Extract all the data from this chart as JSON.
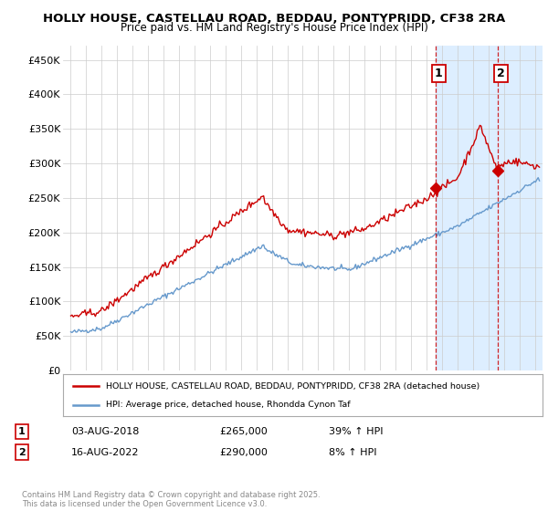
{
  "title_line1": "HOLLY HOUSE, CASTELLAU ROAD, BEDDAU, PONTYPRIDD, CF38 2RA",
  "title_line2": "Price paid vs. HM Land Registry's House Price Index (HPI)",
  "background_color": "#ffffff",
  "plot_bg_color": "#ffffff",
  "grid_color": "#cccccc",
  "red_color": "#cc0000",
  "blue_color": "#6699cc",
  "shade_color": "#ddeeff",
  "marker1_year": 2018.58,
  "marker1_value": 265000,
  "marker2_year": 2022.62,
  "marker2_value": 290000,
  "yticks": [
    0,
    50000,
    100000,
    150000,
    200000,
    250000,
    300000,
    350000,
    400000,
    450000
  ],
  "ytick_labels": [
    "£0",
    "£50K",
    "£100K",
    "£150K",
    "£200K",
    "£250K",
    "£300K",
    "£350K",
    "£400K",
    "£450K"
  ],
  "xmin": 1994.5,
  "xmax": 2025.5,
  "ymin": 0,
  "ymax": 470000,
  "legend_red_label": "HOLLY HOUSE, CASTELLAU ROAD, BEDDAU, PONTYPRIDD, CF38 2RA (detached house)",
  "legend_blue_label": "HPI: Average price, detached house, Rhondda Cynon Taf",
  "annotation1_num": "1",
  "annotation1_date": "03-AUG-2018",
  "annotation1_price": "£265,000",
  "annotation1_hpi": "39% ↑ HPI",
  "annotation2_num": "2",
  "annotation2_date": "16-AUG-2022",
  "annotation2_price": "£290,000",
  "annotation2_hpi": "8% ↑ HPI",
  "footer": "Contains HM Land Registry data © Crown copyright and database right 2025.\nThis data is licensed under the Open Government Licence v3.0."
}
